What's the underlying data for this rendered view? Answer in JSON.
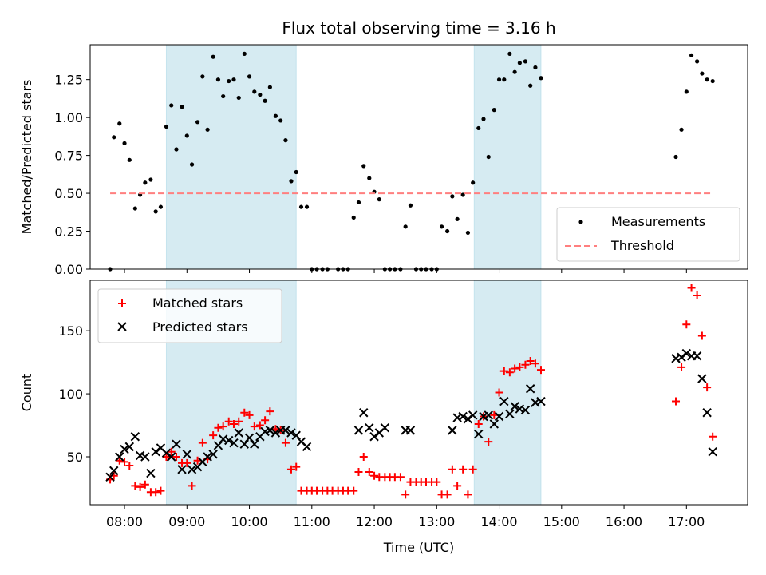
{
  "chart_data": [
    {
      "type": "scatter",
      "title": "Flux total observing time = 3.16 h",
      "xlabel": "",
      "ylabel": "Matched/Predicted stars",
      "xlim": [
        7.45,
        17.98
      ],
      "ylim": [
        0.0,
        1.48
      ],
      "yticks": [
        0.0,
        0.25,
        0.5,
        0.75,
        1.0,
        1.25
      ],
      "ytick_labels": [
        "0.00",
        "0.25",
        "0.50",
        "0.75",
        "1.00",
        "1.25"
      ],
      "legend_position": "lower-right",
      "shaded_intervals": [
        [
          8.67,
          10.75
        ],
        [
          13.6,
          14.67
        ]
      ],
      "series": [
        {
          "name": "Measurements",
          "marker": "dot",
          "color": "#000000",
          "points": [
            [
              7.77,
              0.0
            ],
            [
              7.83,
              0.87
            ],
            [
              7.92,
              0.96
            ],
            [
              8.0,
              0.83
            ],
            [
              8.08,
              0.72
            ],
            [
              8.17,
              0.4
            ],
            [
              8.25,
              0.49
            ],
            [
              8.33,
              0.57
            ],
            [
              8.42,
              0.59
            ],
            [
              8.5,
              0.38
            ],
            [
              8.58,
              0.41
            ],
            [
              8.67,
              0.94
            ],
            [
              8.75,
              1.08
            ],
            [
              8.83,
              0.79
            ],
            [
              8.92,
              1.07
            ],
            [
              9.0,
              0.88
            ],
            [
              9.08,
              0.69
            ],
            [
              9.17,
              0.97
            ],
            [
              9.25,
              1.27
            ],
            [
              9.33,
              0.92
            ],
            [
              9.42,
              1.4
            ],
            [
              9.5,
              1.25
            ],
            [
              9.58,
              1.14
            ],
            [
              9.67,
              1.24
            ],
            [
              9.75,
              1.25
            ],
            [
              9.83,
              1.13
            ],
            [
              9.92,
              1.42
            ],
            [
              10.0,
              1.27
            ],
            [
              10.08,
              1.17
            ],
            [
              10.17,
              1.15
            ],
            [
              10.25,
              1.11
            ],
            [
              10.33,
              1.2
            ],
            [
              10.42,
              1.01
            ],
            [
              10.5,
              0.98
            ],
            [
              10.58,
              0.85
            ],
            [
              10.67,
              0.58
            ],
            [
              10.75,
              0.64
            ],
            [
              10.83,
              0.41
            ],
            [
              10.92,
              0.41
            ],
            [
              11.0,
              0.0
            ],
            [
              11.08,
              0.0
            ],
            [
              11.17,
              0.0
            ],
            [
              11.25,
              0.0
            ],
            [
              11.42,
              0.0
            ],
            [
              11.5,
              0.0
            ],
            [
              11.58,
              0.0
            ],
            [
              11.67,
              0.34
            ],
            [
              11.75,
              0.44
            ],
            [
              11.83,
              0.68
            ],
            [
              11.92,
              0.6
            ],
            [
              12.0,
              0.51
            ],
            [
              12.08,
              0.46
            ],
            [
              12.17,
              0.0
            ],
            [
              12.25,
              0.0
            ],
            [
              12.33,
              0.0
            ],
            [
              12.42,
              0.0
            ],
            [
              12.5,
              0.28
            ],
            [
              12.58,
              0.42
            ],
            [
              12.67,
              0.0
            ],
            [
              12.75,
              0.0
            ],
            [
              12.83,
              0.0
            ],
            [
              12.92,
              0.0
            ],
            [
              13.0,
              0.0
            ],
            [
              13.08,
              0.28
            ],
            [
              13.17,
              0.25
            ],
            [
              13.25,
              0.48
            ],
            [
              13.33,
              0.33
            ],
            [
              13.42,
              0.49
            ],
            [
              13.5,
              0.24
            ],
            [
              13.58,
              0.57
            ],
            [
              13.67,
              0.93
            ],
            [
              13.75,
              0.99
            ],
            [
              13.83,
              0.74
            ],
            [
              13.92,
              1.05
            ],
            [
              14.0,
              1.25
            ],
            [
              14.08,
              1.25
            ],
            [
              14.17,
              1.42
            ],
            [
              14.25,
              1.3
            ],
            [
              14.33,
              1.36
            ],
            [
              14.42,
              1.37
            ],
            [
              14.5,
              1.21
            ],
            [
              14.58,
              1.33
            ],
            [
              14.67,
              1.26
            ],
            [
              16.83,
              0.74
            ],
            [
              16.92,
              0.92
            ],
            [
              17.0,
              1.17
            ],
            [
              17.08,
              1.41
            ],
            [
              17.17,
              1.37
            ],
            [
              17.25,
              1.29
            ],
            [
              17.33,
              1.25
            ],
            [
              17.42,
              1.24
            ]
          ]
        },
        {
          "name": "Threshold",
          "marker": "dashed-line",
          "color": "#ff7f7f",
          "x": [
            7.77,
            17.42
          ],
          "y": [
            0.5,
            0.5
          ]
        }
      ]
    },
    {
      "type": "scatter",
      "title": "",
      "xlabel": "Time (UTC)",
      "ylabel": "Count",
      "xlim": [
        7.45,
        17.98
      ],
      "ylim": [
        12,
        190
      ],
      "yticks": [
        50,
        100,
        150
      ],
      "ytick_labels": [
        "50",
        "100",
        "150"
      ],
      "xticks": [
        8,
        9,
        10,
        11,
        12,
        13,
        14,
        15,
        16,
        17
      ],
      "xtick_labels": [
        "08:00",
        "09:00",
        "10:00",
        "11:00",
        "12:00",
        "13:00",
        "14:00",
        "15:00",
        "16:00",
        "17:00"
      ],
      "legend_position": "top-left",
      "shaded_intervals": [
        [
          8.67,
          10.75
        ],
        [
          13.6,
          14.67
        ]
      ],
      "series": [
        {
          "name": "Matched stars",
          "marker": "plus",
          "color": "#ff0000",
          "points": [
            [
              7.77,
              32
            ],
            [
              7.83,
              35
            ],
            [
              7.92,
              47
            ],
            [
              8.0,
              46
            ],
            [
              8.08,
              43
            ],
            [
              8.17,
              27
            ],
            [
              8.25,
              26
            ],
            [
              8.33,
              28
            ],
            [
              8.42,
              22
            ],
            [
              8.5,
              22
            ],
            [
              8.58,
              23
            ],
            [
              8.67,
              50
            ],
            [
              8.75,
              54
            ],
            [
              8.83,
              50
            ],
            [
              8.92,
              45
            ],
            [
              9.0,
              45
            ],
            [
              9.08,
              27
            ],
            [
              9.17,
              47
            ],
            [
              9.25,
              61
            ],
            [
              9.33,
              48
            ],
            [
              9.42,
              67
            ],
            [
              9.5,
              73
            ],
            [
              9.58,
              74
            ],
            [
              9.67,
              78
            ],
            [
              9.75,
              76
            ],
            [
              9.83,
              78
            ],
            [
              9.92,
              85
            ],
            [
              10.0,
              83
            ],
            [
              10.08,
              74
            ],
            [
              10.17,
              75
            ],
            [
              10.25,
              79
            ],
            [
              10.33,
              86
            ],
            [
              10.42,
              72
            ],
            [
              10.5,
              71
            ],
            [
              10.58,
              61
            ],
            [
              10.67,
              40
            ],
            [
              10.75,
              42
            ],
            [
              10.83,
              23
            ],
            [
              10.92,
              23
            ],
            [
              11.0,
              23
            ],
            [
              11.08,
              23
            ],
            [
              11.17,
              23
            ],
            [
              11.25,
              23
            ],
            [
              11.33,
              23
            ],
            [
              11.42,
              23
            ],
            [
              11.5,
              23
            ],
            [
              11.58,
              23
            ],
            [
              11.67,
              23
            ],
            [
              11.75,
              38
            ],
            [
              11.83,
              50
            ],
            [
              11.92,
              38
            ],
            [
              12.0,
              35
            ],
            [
              12.08,
              34
            ],
            [
              12.17,
              34
            ],
            [
              12.25,
              34
            ],
            [
              12.33,
              34
            ],
            [
              12.42,
              34
            ],
            [
              12.5,
              20
            ],
            [
              12.58,
              30
            ],
            [
              12.67,
              30
            ],
            [
              12.75,
              30
            ],
            [
              12.83,
              30
            ],
            [
              12.92,
              30
            ],
            [
              13.0,
              30
            ],
            [
              13.08,
              20
            ],
            [
              13.17,
              20
            ],
            [
              13.25,
              40
            ],
            [
              13.33,
              27
            ],
            [
              13.42,
              40
            ],
            [
              13.5,
              20
            ],
            [
              13.58,
              40
            ],
            [
              13.67,
              76
            ],
            [
              13.75,
              82
            ],
            [
              13.83,
              62
            ],
            [
              13.92,
              83
            ],
            [
              14.0,
              101
            ],
            [
              14.08,
              118
            ],
            [
              14.17,
              117
            ],
            [
              14.25,
              120
            ],
            [
              14.33,
              121
            ],
            [
              14.42,
              123
            ],
            [
              14.5,
              126
            ],
            [
              14.58,
              124
            ],
            [
              14.67,
              119
            ],
            [
              16.83,
              94
            ],
            [
              16.92,
              121
            ],
            [
              17.0,
              155
            ],
            [
              17.08,
              184
            ],
            [
              17.17,
              178
            ],
            [
              17.25,
              146
            ],
            [
              17.33,
              105
            ],
            [
              17.42,
              66
            ]
          ]
        },
        {
          "name": "Predicted stars",
          "marker": "x",
          "color": "#000000",
          "points": [
            [
              7.77,
              34
            ],
            [
              7.83,
              39
            ],
            [
              7.92,
              50
            ],
            [
              8.0,
              56
            ],
            [
              8.08,
              58
            ],
            [
              8.17,
              66
            ],
            [
              8.25,
              51
            ],
            [
              8.33,
              50
            ],
            [
              8.42,
              37
            ],
            [
              8.5,
              54
            ],
            [
              8.58,
              57
            ],
            [
              8.67,
              53
            ],
            [
              8.75,
              50
            ],
            [
              8.83,
              60
            ],
            [
              8.92,
              40
            ],
            [
              9.0,
              52
            ],
            [
              9.08,
              40
            ],
            [
              9.17,
              42
            ],
            [
              9.25,
              46
            ],
            [
              9.33,
              50
            ],
            [
              9.42,
              52
            ],
            [
              9.5,
              59
            ],
            [
              9.58,
              64
            ],
            [
              9.67,
              63
            ],
            [
              9.75,
              61
            ],
            [
              9.83,
              69
            ],
            [
              9.92,
              60
            ],
            [
              10.0,
              65
            ],
            [
              10.08,
              60
            ],
            [
              10.17,
              66
            ],
            [
              10.25,
              70
            ],
            [
              10.33,
              71
            ],
            [
              10.42,
              69
            ],
            [
              10.5,
              71
            ],
            [
              10.58,
              71
            ],
            [
              10.67,
              69
            ],
            [
              10.75,
              67
            ],
            [
              10.83,
              62
            ],
            [
              10.92,
              58
            ],
            [
              11.75,
              71
            ],
            [
              11.83,
              85
            ],
            [
              11.92,
              73
            ],
            [
              12.0,
              66
            ],
            [
              12.08,
              69
            ],
            [
              12.17,
              73
            ],
            [
              12.5,
              71
            ],
            [
              12.58,
              71
            ],
            [
              13.25,
              71
            ],
            [
              13.33,
              81
            ],
            [
              13.42,
              82
            ],
            [
              13.5,
              80
            ],
            [
              13.58,
              83
            ],
            [
              13.67,
              68
            ],
            [
              13.75,
              82
            ],
            [
              13.83,
              83
            ],
            [
              13.92,
              76
            ],
            [
              14.0,
              82
            ],
            [
              14.08,
              94
            ],
            [
              14.17,
              84
            ],
            [
              14.25,
              90
            ],
            [
              14.33,
              88
            ],
            [
              14.42,
              87
            ],
            [
              14.5,
              104
            ],
            [
              14.58,
              93
            ],
            [
              14.67,
              94
            ],
            [
              16.83,
              128
            ],
            [
              16.92,
              129
            ],
            [
              17.0,
              132
            ],
            [
              17.08,
              130
            ],
            [
              17.17,
              130
            ],
            [
              17.25,
              112
            ],
            [
              17.33,
              85
            ],
            [
              17.42,
              54
            ]
          ]
        }
      ]
    }
  ]
}
